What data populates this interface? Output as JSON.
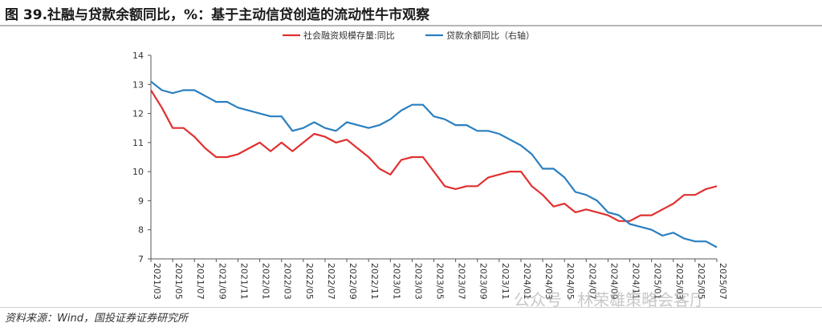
{
  "title": "图 39.社融与贷款余额同比，%：基于主动信贷创造的流动性牛市观察",
  "source": "资料来源：Wind，国投证券证券研究所",
  "watermark": "公众号 · 林荣雄策略会客厅",
  "colors": {
    "red_series": "#e03030",
    "blue_series": "#2a7fc0"
  },
  "chart_data": {
    "type": "line",
    "ylim": [
      7,
      14
    ],
    "yticks": [
      7,
      8,
      9,
      10,
      11,
      12,
      13,
      14
    ],
    "x_labels": [
      "2021/03",
      "2021/05",
      "2021/07",
      "2021/09",
      "2021/11",
      "2022/01",
      "2022/03",
      "2022/05",
      "2022/07",
      "2022/09",
      "2022/11",
      "2023/01",
      "2023/03",
      "2023/05",
      "2023/07",
      "2023/09",
      "2023/11",
      "2024/01",
      "2024/03",
      "2024/05",
      "2024/07",
      "2024/09",
      "2024/11",
      "2025/01",
      "2025/03",
      "2025/05",
      "2025/07"
    ],
    "legend": [
      "社会融资规模存量:同比",
      "贷款余额同比（右轴）"
    ],
    "legend_placement": "top",
    "series": [
      {
        "name": "社会融资规模存量:同比",
        "color": "#e03030",
        "values": [
          12.8,
          12.2,
          11.5,
          11.5,
          11.2,
          10.8,
          10.5,
          10.5,
          10.6,
          10.8,
          11.0,
          10.7,
          11.0,
          10.7,
          11.0,
          11.3,
          11.2,
          11.0,
          11.1,
          10.8,
          10.5,
          10.1,
          9.9,
          10.4,
          10.5,
          10.5,
          10.0,
          9.5,
          9.4,
          9.5,
          9.5,
          9.8,
          9.9,
          10.0,
          10.0,
          9.5,
          9.2,
          8.8,
          8.9,
          8.6,
          8.7,
          8.6,
          8.5,
          8.3,
          8.3,
          8.5,
          8.5,
          8.7,
          8.9,
          9.2,
          9.2,
          9.4,
          9.5
        ]
      },
      {
        "name": "贷款余额同比（右轴）",
        "color": "#2a7fc0",
        "values": [
          13.1,
          12.8,
          12.7,
          12.8,
          12.8,
          12.6,
          12.4,
          12.4,
          12.2,
          12.1,
          12.0,
          11.9,
          11.9,
          11.4,
          11.5,
          11.7,
          11.5,
          11.4,
          11.7,
          11.6,
          11.5,
          11.6,
          11.8,
          12.1,
          12.3,
          12.3,
          11.9,
          11.8,
          11.6,
          11.6,
          11.4,
          11.4,
          11.3,
          11.1,
          10.9,
          10.6,
          10.1,
          10.1,
          9.8,
          9.3,
          9.2,
          9.0,
          8.6,
          8.5,
          8.2,
          8.1,
          8.0,
          7.8,
          7.9,
          7.7,
          7.6,
          7.6,
          7.4
        ]
      }
    ]
  }
}
